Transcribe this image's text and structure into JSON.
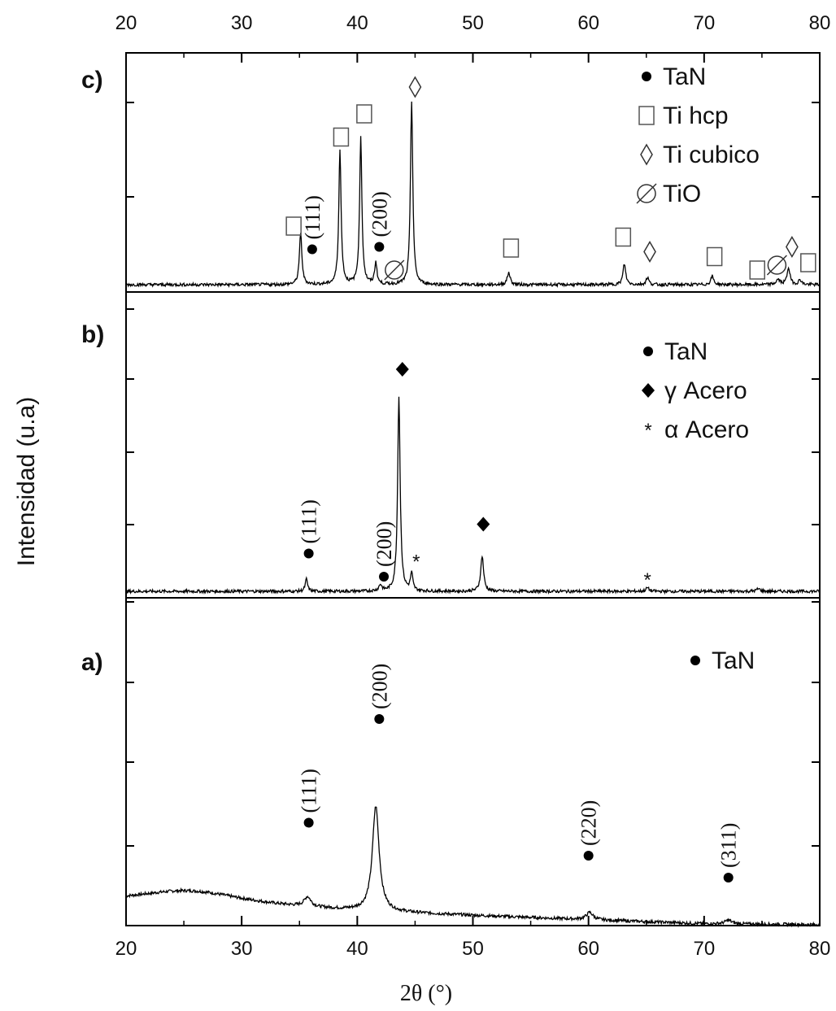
{
  "chart_data": {
    "type": "line",
    "xlabel": "2θ (°)",
    "ylabel": "Intensidad (u.a)",
    "xlim": [
      20,
      80
    ],
    "xticks": [
      "20",
      "30",
      "40",
      "50",
      "60",
      "70",
      "80"
    ],
    "grid": false,
    "panels": [
      {
        "label": "a)",
        "baseline": 0.28,
        "peaks": [
          {
            "x": 25.5,
            "y": 0.13,
            "w": 6.0
          },
          {
            "x": 35.7,
            "y": 0.08,
            "w": 0.35
          },
          {
            "x": 41.6,
            "y": 0.86,
            "w": 0.35
          },
          {
            "x": 60.1,
            "y": 0.06,
            "w": 0.35
          },
          {
            "x": 72.1,
            "y": 0.03,
            "w": 0.35
          }
        ],
        "markers": [
          {
            "x": 35.8,
            "y": 0.67,
            "symbol": "circle",
            "hkl": "(111)"
          },
          {
            "x": 41.9,
            "y": 1.52,
            "symbol": "circle",
            "hkl": "(200)"
          },
          {
            "x": 60.0,
            "y": 0.4,
            "symbol": "circle",
            "hkl": "(220)"
          },
          {
            "x": 72.1,
            "y": 0.22,
            "symbol": "circle",
            "hkl": "(311)"
          }
        ],
        "legend": [
          {
            "symbol": "circle",
            "label": "TaN"
          }
        ]
      },
      {
        "label": "b)",
        "baseline": 0.05,
        "peaks": [
          {
            "x": 35.6,
            "y": 0.1,
            "w": 0.12
          },
          {
            "x": 42.0,
            "y": 0.05,
            "w": 0.15
          },
          {
            "x": 43.6,
            "y": 1.6,
            "w": 0.13
          },
          {
            "x": 44.7,
            "y": 0.14,
            "w": 0.12
          },
          {
            "x": 50.8,
            "y": 0.29,
            "w": 0.15
          },
          {
            "x": 65.1,
            "y": 0.03,
            "w": 0.15
          },
          {
            "x": 74.7,
            "y": 0.02,
            "w": 0.2
          }
        ],
        "markers": [
          {
            "x": 35.8,
            "y": 0.31,
            "symbol": "circle",
            "hkl": "(111)"
          },
          {
            "x": 42.3,
            "y": 0.12,
            "symbol": "circle",
            "hkl": "(200)"
          },
          {
            "x": 43.9,
            "y": 1.82,
            "symbol": "diamond-filled"
          },
          {
            "x": 45.1,
            "y": 0.25,
            "symbol": "star"
          },
          {
            "x": 50.9,
            "y": 0.55,
            "symbol": "diamond-filled"
          },
          {
            "x": 65.1,
            "y": 0.1,
            "symbol": "star"
          }
        ],
        "legend": [
          {
            "symbol": "circle",
            "label": "TaN"
          },
          {
            "symbol": "diamond-filled",
            "label": "γ Acero"
          },
          {
            "symbol": "star",
            "label": "α Acero"
          }
        ]
      },
      {
        "label": "c)",
        "baseline": 0.03,
        "peaks": [
          {
            "x": 35.1,
            "y": 0.42,
            "w": 0.13
          },
          {
            "x": 38.5,
            "y": 1.1,
            "w": 0.12
          },
          {
            "x": 40.3,
            "y": 1.2,
            "w": 0.12
          },
          {
            "x": 41.6,
            "y": 0.18,
            "w": 0.12
          },
          {
            "x": 44.7,
            "y": 1.5,
            "w": 0.12
          },
          {
            "x": 53.1,
            "y": 0.1,
            "w": 0.15
          },
          {
            "x": 63.1,
            "y": 0.17,
            "w": 0.14
          },
          {
            "x": 65.1,
            "y": 0.06,
            "w": 0.14
          },
          {
            "x": 70.7,
            "y": 0.07,
            "w": 0.15
          },
          {
            "x": 76.4,
            "y": 0.04,
            "w": 0.2
          },
          {
            "x": 77.3,
            "y": 0.14,
            "w": 0.15
          },
          {
            "x": 78.3,
            "y": 0.04,
            "w": 0.15
          }
        ],
        "markers": [
          {
            "x": 34.5,
            "y": 0.48,
            "symbol": "square"
          },
          {
            "x": 36.1,
            "y": 0.29,
            "symbol": "circle",
            "hkl": "(111)"
          },
          {
            "x": 38.6,
            "y": 1.21,
            "symbol": "square"
          },
          {
            "x": 40.6,
            "y": 1.4,
            "symbol": "square"
          },
          {
            "x": 41.9,
            "y": 0.31,
            "symbol": "circle",
            "hkl": "(200)"
          },
          {
            "x": 43.2,
            "y": 0.12,
            "symbol": "emptyset"
          },
          {
            "x": 45.0,
            "y": 1.62,
            "symbol": "diamond-open"
          },
          {
            "x": 53.3,
            "y": 0.3,
            "symbol": "square"
          },
          {
            "x": 63.0,
            "y": 0.39,
            "symbol": "square"
          },
          {
            "x": 65.3,
            "y": 0.27,
            "symbol": "diamond-open"
          },
          {
            "x": 70.9,
            "y": 0.23,
            "symbol": "square"
          },
          {
            "x": 74.6,
            "y": 0.12,
            "symbol": "square"
          },
          {
            "x": 76.3,
            "y": 0.16,
            "symbol": "emptyset"
          },
          {
            "x": 77.6,
            "y": 0.31,
            "symbol": "diamond-open"
          },
          {
            "x": 79.0,
            "y": 0.18,
            "symbol": "square"
          }
        ],
        "legend": [
          {
            "symbol": "circle",
            "label": "TaN"
          },
          {
            "symbol": "square",
            "label": "Ti hcp"
          },
          {
            "symbol": "diamond-open",
            "label": "Ti cubico"
          },
          {
            "symbol": "emptyset",
            "label": "TiO"
          }
        ]
      }
    ]
  }
}
